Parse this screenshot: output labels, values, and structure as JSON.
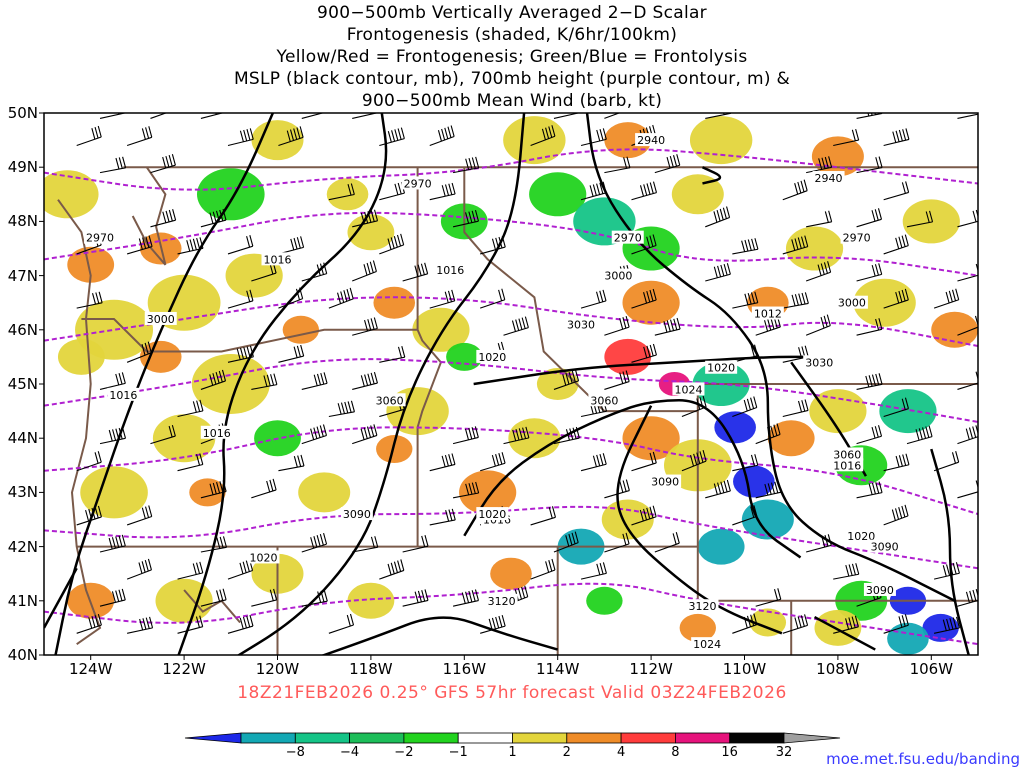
{
  "title_lines": [
    "900−500mb Vertically Averaged 2−D Scalar",
    "Frontogenesis (shaded, K/6hr/100km)",
    "Yellow/Red = Frontogenesis;  Green/Blue = Frontolysis",
    "MSLP (black contour, mb), 700mb height (purple contour, m) &",
    "900−500mb Mean Wind (barb, kt)"
  ],
  "lat_labels": [
    "50N",
    "49N",
    "48N",
    "47N",
    "46N",
    "45N",
    "44N",
    "43N",
    "42N",
    "41N",
    "40N"
  ],
  "lon_labels": [
    "124W",
    "122W",
    "120W",
    "118W",
    "116W",
    "114W",
    "112W",
    "110W",
    "108W",
    "106W"
  ],
  "footer": "18Z21FEB2026 0.25° GFS 57hr forecast Valid 03Z24FEB2026",
  "credit": "moe.met.fsu.edu/banding",
  "colorbar": {
    "labels": [
      "−8",
      "−4",
      "−2",
      "−1",
      "1",
      "2",
      "4",
      "8",
      "16",
      "32"
    ],
    "colors": [
      "#1d28e8",
      "#13a8b4",
      "#15c487",
      "#1dbe5a",
      "#22d31f",
      "#ffffff",
      "#e3d53c",
      "#ef8c28",
      "#ff3c3c",
      "#e6137c",
      "#050505",
      "#a0a0a0"
    ]
  },
  "map": {
    "lon_range": [
      -125,
      -105
    ],
    "lat_range": [
      40,
      50
    ],
    "mslp_labels": [
      "1016",
      "1016",
      "1016",
      "1016",
      "1020",
      "1016",
      "1024",
      "1020",
      "1012",
      "1016",
      "1020",
      "1020",
      "1024",
      "1020"
    ],
    "height_labels": [
      "2940",
      "2940",
      "2970",
      "2970",
      "2970",
      "2970",
      "3000",
      "3000",
      "3000",
      "3030",
      "3030",
      "3060",
      "3060",
      "3060",
      "3090",
      "3090",
      "3090",
      "3090",
      "3120",
      "3120"
    ]
  }
}
